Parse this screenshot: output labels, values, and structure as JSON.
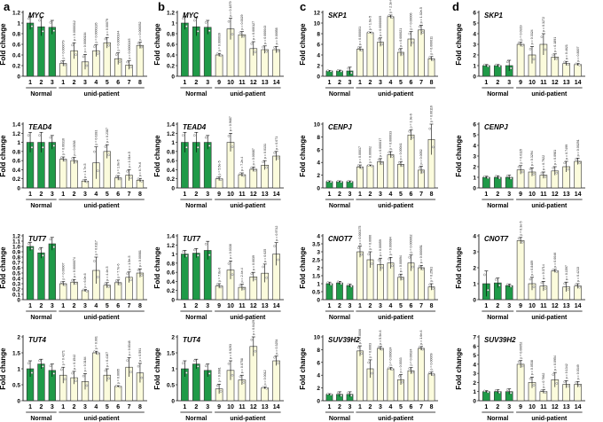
{
  "panel_labels": [
    "a",
    "b",
    "c",
    "d"
  ],
  "colors": {
    "normal_fill": "#1f9a48",
    "patient_fill": "#fbfbdc",
    "bar_stroke": "#333333",
    "axis": "#000000"
  },
  "chart_data": [
    {
      "type": "bar",
      "panel": "a",
      "title": "MYC",
      "ylabel": "Fold change",
      "ylim": [
        0,
        1.2
      ],
      "yticks": [
        0,
        0.2,
        0.4,
        0.6,
        0.8,
        1,
        1.2
      ],
      "ytick_labels": [
        "0",
        "0.2",
        "0.4",
        "0.6",
        "0.8",
        "1",
        "1.2"
      ],
      "categories": [
        "1",
        "2",
        "3",
        "1",
        "2",
        "3",
        "4",
        "5",
        "6",
        "7",
        "8"
      ],
      "values": [
        1.0,
        0.93,
        0.92,
        0.24,
        0.48,
        0.27,
        0.48,
        0.63,
        0.33,
        0.21,
        0.58
      ],
      "errors": [
        0.12,
        0.17,
        0.13,
        0.05,
        0.15,
        0.14,
        0.11,
        0.1,
        0.11,
        0.08,
        0.06
      ],
      "pvalues": [
        "",
        "",
        "",
        "p = 0.000079",
        "p = 0.0000312",
        "p = 0.0000184",
        "p = 0.0000226",
        "p = 0.00079",
        "p = 0.0000144",
        "p = 0.0000245",
        "p = 0.000052"
      ],
      "group_labels": [
        "Normal",
        "unid-patient"
      ]
    },
    {
      "type": "bar",
      "panel": "b",
      "title": "MYC",
      "ylabel": "Fold change",
      "ylim": [
        0,
        1.2
      ],
      "yticks": [
        0,
        0.2,
        0.4,
        0.6,
        0.8,
        1,
        1.2
      ],
      "ytick_labels": [
        "0",
        "0.2",
        "0.4",
        "0.6",
        "0.8",
        "1",
        "1.2"
      ],
      "categories": [
        "1",
        "2",
        "3",
        "9",
        "10",
        "11",
        "12",
        "13",
        "14"
      ],
      "values": [
        1.0,
        0.93,
        0.92,
        0.4,
        0.89,
        0.78,
        0.52,
        0.5,
        0.5
      ],
      "errors": [
        0.12,
        0.17,
        0.13,
        0.03,
        0.2,
        0.06,
        0.13,
        0.07,
        0.06
      ],
      "pvalues": [
        "",
        "",
        "",
        "p = 0.000039",
        "p = 0.1879",
        "p = 0.0029",
        "p = 0.000127",
        "p = 0.000043",
        "p = 0.00058"
      ],
      "group_labels": [
        "Normal",
        "unid-patient"
      ]
    },
    {
      "type": "bar",
      "panel": "c",
      "title": "SKP1",
      "ylabel": "Fold change",
      "ylim": [
        0,
        12
      ],
      "yticks": [
        0,
        2,
        4,
        6,
        8,
        10,
        12
      ],
      "ytick_labels": [
        "0",
        "2",
        "4",
        "6",
        "8",
        "10",
        "12"
      ],
      "categories": [
        "1",
        "2",
        "3",
        "1",
        "2",
        "3",
        "4",
        "5",
        "6",
        "7",
        "8"
      ],
      "values": [
        1.0,
        1.0,
        1.0,
        5.1,
        8.2,
        6.4,
        11.2,
        4.5,
        7.0,
        8.7,
        3.3
      ],
      "errors": [
        0.1,
        0.15,
        0.7,
        0.4,
        0.1,
        0.8,
        0.3,
        0.7,
        1.4,
        0.9,
        0.4
      ],
      "pvalues": [
        "",
        "",
        "",
        "p = 0.000001",
        "p = 1.6e-5",
        "p = 0.0000005",
        "p = 2.1e-6",
        "p = 0.000021",
        "p = 0.00006",
        "p = 1.02e-5",
        "p = 0.000011"
      ],
      "group_labels": [
        "Normal",
        "unid-patient"
      ]
    },
    {
      "type": "bar",
      "panel": "d",
      "title": "SKP1",
      "ylabel": "Fold change",
      "ylim": [
        0,
        6
      ],
      "yticks": [
        0,
        1,
        2,
        3,
        4,
        5,
        6
      ],
      "ytick_labels": [
        "0",
        "1",
        "2",
        "3",
        "4",
        "5",
        "6"
      ],
      "categories": [
        "1",
        "2",
        "3",
        "9",
        "10",
        "11",
        "12",
        "13",
        "14"
      ],
      "values": [
        1.0,
        1.0,
        1.0,
        3.0,
        2.0,
        3.0,
        1.8,
        1.2,
        1.1
      ],
      "errors": [
        0.1,
        0.1,
        0.5,
        0.2,
        0.8,
        1.0,
        0.3,
        0.2,
        0.1
      ],
      "pvalues": [
        "",
        "",
        "",
        "p = 0.0319",
        "p = 0.3324",
        "p = 0.3272",
        "p = 0.1891",
        "p = 0.4621",
        "p = 0.8007"
      ],
      "group_labels": [
        "Normal",
        "unid-patient"
      ]
    },
    {
      "type": "bar",
      "panel": "a",
      "title": "TEAD4",
      "ylabel": "Fold change",
      "ylim": [
        0,
        1.4
      ],
      "yticks": [
        0,
        0.2,
        0.4,
        0.6,
        0.8,
        1,
        1.2,
        1.4
      ],
      "ytick_labels": [
        "0",
        "0.2",
        "0.4",
        "0.6",
        "0.8",
        "1",
        "1.2",
        "1.4"
      ],
      "categories": [
        "1",
        "2",
        "3",
        "1",
        "2",
        "3",
        "4",
        "5",
        "6",
        "7",
        "8"
      ],
      "values": [
        1.0,
        1.0,
        1.0,
        0.63,
        0.6,
        0.15,
        0.55,
        0.8,
        0.22,
        0.28,
        0.17
      ],
      "errors": [
        0.22,
        0.22,
        0.15,
        0.05,
        0.07,
        0.03,
        0.35,
        0.15,
        0.05,
        0.12,
        0.04
      ],
      "pvalues": [
        "",
        "",
        "",
        "p = 0.00316",
        "p = 0.0038",
        "p = 1.7e-5",
        "p = 0.0281",
        "p = 0.2387",
        "p = 1.6e-5",
        "p = 1.01e-5",
        "p = 6.7e-6"
      ],
      "group_labels": [
        "Normal",
        "unid-patient"
      ]
    },
    {
      "type": "bar",
      "panel": "b",
      "title": "TEAD4",
      "ylabel": "Fold change",
      "ylim": [
        0,
        1.4
      ],
      "yticks": [
        0,
        0.2,
        0.4,
        0.6,
        0.8,
        1,
        1.2,
        1.4
      ],
      "ytick_labels": [
        "0",
        "0.2",
        "0.4",
        "0.6",
        "0.8",
        "1",
        "1.2",
        "1.4"
      ],
      "categories": [
        "1",
        "2",
        "3",
        "9",
        "10",
        "11",
        "12",
        "13",
        "14"
      ],
      "values": [
        1.0,
        1.0,
        1.0,
        0.2,
        1.0,
        0.29,
        0.41,
        0.5,
        0.7
      ],
      "errors": [
        0.22,
        0.22,
        0.15,
        0.04,
        0.2,
        0.04,
        0.05,
        0.1,
        0.1
      ],
      "pvalues": [
        "",
        "",
        "",
        "p = 5.5e-5",
        "p = 0.9687",
        "p = 7.2e-4",
        "p = 0.00087",
        "p = 0.0131",
        "p = 0.071"
      ],
      "group_labels": [
        "Normal",
        "unid-patient"
      ]
    },
    {
      "type": "bar",
      "panel": "c",
      "title": "CENPJ",
      "ylabel": "Fold change",
      "ylim": [
        0,
        10
      ],
      "yticks": [
        0,
        2,
        4,
        6,
        8,
        10
      ],
      "ytick_labels": [
        "0",
        "2",
        "4",
        "6",
        "8",
        "10"
      ],
      "categories": [
        "1",
        "2",
        "3",
        "1",
        "2",
        "3",
        "4",
        "5",
        "6",
        "7",
        "8"
      ],
      "values": [
        1.0,
        1.0,
        1.0,
        3.3,
        3.5,
        4.1,
        5.2,
        3.7,
        8.3,
        2.8,
        7.6
      ],
      "errors": [
        0.1,
        0.1,
        0.1,
        0.3,
        0.1,
        0.5,
        0.5,
        0.4,
        0.8,
        0.6,
        2.4
      ],
      "pvalues": [
        "",
        "",
        "",
        "p = 0.00017",
        "p = 0.00002",
        "p = 0.000017",
        "p = 0.000033",
        "p = 0.00041",
        "p = 1.9e-6",
        "p = 0.0052",
        "p = 0.00116"
      ],
      "group_labels": [
        "Normal",
        "unid-patient"
      ]
    },
    {
      "type": "bar",
      "panel": "d",
      "title": "CENPJ",
      "ylabel": "Fold change",
      "ylim": [
        0,
        6
      ],
      "yticks": [
        0,
        1,
        2,
        3,
        4,
        5,
        6
      ],
      "ytick_labels": [
        "0",
        "1",
        "2",
        "3",
        "4",
        "5",
        "6"
      ],
      "categories": [
        "1",
        "2",
        "3",
        "9",
        "10",
        "11",
        "12",
        "13",
        "14"
      ],
      "values": [
        1.0,
        1.0,
        1.0,
        1.7,
        1.5,
        1.2,
        1.6,
        2.0,
        2.5
      ],
      "errors": [
        0.1,
        0.15,
        0.2,
        0.4,
        0.4,
        0.3,
        0.4,
        0.5,
        0.3
      ],
      "pvalues": [
        "",
        "",
        "",
        "p = 0.0115",
        "p = 0.3294",
        "p = 0.7922",
        "p = 0.0981",
        "p = 0.7499",
        "p = 0.00291"
      ],
      "group_labels": [
        "Normal",
        "unid-patient"
      ]
    },
    {
      "type": "bar",
      "panel": "a",
      "title": "TUT7",
      "ylabel": "Fold change",
      "ylim": [
        0,
        1.2
      ],
      "yticks": [
        0,
        0.1,
        0.2,
        0.3,
        0.4,
        0.5,
        0.6,
        0.7,
        0.8,
        0.9,
        1,
        1.1,
        1.2
      ],
      "ytick_labels": [
        "0",
        "0.1",
        "0.2",
        "0.3",
        "0.4",
        "0.5",
        "0.6",
        "0.7",
        "0.8",
        "0.9",
        "1.0",
        "1.1",
        "1.2"
      ],
      "categories": [
        "1",
        "2",
        "3",
        "1",
        "2",
        "3",
        "4",
        "5",
        "6",
        "7",
        "8"
      ],
      "values": [
        1.0,
        0.88,
        1.05,
        0.3,
        0.33,
        0.17,
        0.55,
        0.27,
        0.32,
        0.42,
        0.5
      ],
      "errors": [
        0.08,
        0.1,
        0.12,
        0.04,
        0.05,
        0.02,
        0.25,
        0.05,
        0.05,
        0.1,
        0.08
      ],
      "pvalues": [
        "",
        "",
        "",
        "p = 0.00007",
        "p = 0.0000074",
        "p = 6.0e-6",
        "p = 0.0117",
        "p = 4.4e-5",
        "p = 7.7e-6",
        "p = 1.5e-5",
        "p = 0.00081"
      ],
      "group_labels": [
        "Normal",
        "unid-patient"
      ]
    },
    {
      "type": "bar",
      "panel": "b",
      "title": "TUT7",
      "ylabel": "Fold change",
      "ylim": [
        0,
        1.4
      ],
      "yticks": [
        0,
        0.2,
        0.4,
        0.6,
        0.8,
        1,
        1.2,
        1.4
      ],
      "ytick_labels": [
        "0",
        "0.2",
        "0.4",
        "0.6",
        "0.8",
        "1",
        "1.2",
        "1.4"
      ],
      "categories": [
        "1",
        "2",
        "3",
        "9",
        "10",
        "11",
        "12",
        "13",
        "14"
      ],
      "values": [
        1.0,
        1.02,
        1.08,
        0.3,
        0.65,
        0.27,
        0.5,
        0.58,
        1.0
      ],
      "errors": [
        0.08,
        0.1,
        0.2,
        0.05,
        0.2,
        0.07,
        0.1,
        0.2,
        0.25
      ],
      "pvalues": [
        "",
        "",
        "",
        "p = 7.6e-6",
        "p = 0.0338",
        "p = 2.4e-4",
        "p = 0.0039",
        "p = 0.025",
        "p = 0.9742"
      ],
      "group_labels": [
        "Normal",
        "unid-patient"
      ]
    },
    {
      "type": "bar",
      "panel": "c",
      "title": "CNOT7",
      "ylabel": "Fold change",
      "ylim": [
        0,
        4
      ],
      "yticks": [
        0,
        0.5,
        1,
        1.5,
        2,
        2.5,
        3,
        3.5,
        4
      ],
      "ytick_labels": [
        "0",
        "0.5",
        "1",
        "1.5",
        "2",
        "2.5",
        "3",
        "3.5",
        "4"
      ],
      "categories": [
        "1",
        "2",
        "3",
        "1",
        "2",
        "3",
        "4",
        "5",
        "6",
        "7",
        "8"
      ],
      "values": [
        1.0,
        1.05,
        0.88,
        3.0,
        2.5,
        2.2,
        2.3,
        1.4,
        2.3,
        2.0,
        0.8
      ],
      "errors": [
        0.1,
        0.1,
        0.1,
        0.35,
        0.5,
        0.4,
        0.35,
        0.2,
        0.5,
        0.15,
        0.2
      ],
      "pvalues": [
        "",
        "",
        "",
        "p = 0.000175",
        "p = 0.0066",
        "p = 0.00059",
        "p = 0.000084",
        "p = 0.00094",
        "p = 0.000062",
        "p = 0.000051",
        "p = 0.2581"
      ],
      "group_labels": [
        "Normal",
        "unid-patient"
      ]
    },
    {
      "type": "bar",
      "panel": "d",
      "title": "CNOT7",
      "ylabel": "Fold change",
      "ylim": [
        0,
        4
      ],
      "yticks": [
        0,
        1,
        2,
        3,
        4
      ],
      "ytick_labels": [
        "0",
        "1",
        "2",
        "3",
        "4"
      ],
      "categories": [
        "1",
        "2",
        "3",
        "9",
        "10",
        "11",
        "12",
        "13",
        "14"
      ],
      "values": [
        1.0,
        1.05,
        0.88,
        3.7,
        1.0,
        0.85,
        1.8,
        0.8,
        0.85
      ],
      "errors": [
        0.8,
        0.3,
        0.1,
        0.2,
        0.4,
        0.3,
        0.1,
        0.3,
        0.15
      ],
      "pvalues": [
        "",
        "",
        "",
        "p = 6.3e-5",
        "p = 0.8489",
        "p = 0.3714",
        "p = 0.0046",
        "p = 0.1597",
        "p = 0.4213"
      ],
      "group_labels": [
        "Normal",
        "unid-patient"
      ]
    },
    {
      "type": "bar",
      "panel": "a",
      "title": "TUT4",
      "ylabel": "Fold change",
      "ylim": [
        0,
        2
      ],
      "yticks": [
        0,
        0.5,
        1,
        1.5,
        2
      ],
      "ytick_labels": [
        "0",
        "0.5",
        "1",
        "1.5",
        "2"
      ],
      "categories": [
        "1",
        "2",
        "3",
        "1",
        "2",
        "3",
        "4",
        "5",
        "6",
        "7",
        "8"
      ],
      "values": [
        1.0,
        1.15,
        0.95,
        0.8,
        0.72,
        0.6,
        1.5,
        0.8,
        0.45,
        1.05,
        0.87
      ],
      "errors": [
        0.25,
        0.15,
        0.2,
        0.25,
        0.2,
        0.25,
        0.05,
        0.2,
        0.02,
        0.3,
        0.3
      ],
      "pvalues": [
        "",
        "",
        "",
        "p = 0.4271",
        "p = 0.1542",
        "p = 0.3164",
        "p = 0.001",
        "p = 0.4107",
        "p = 0.0095",
        "p = 0.8348",
        "p = 0.591"
      ],
      "group_labels": [
        "Normal",
        "unid-patient"
      ]
    },
    {
      "type": "bar",
      "panel": "b",
      "title": "TUT4",
      "ylabel": "Fold change",
      "ylim": [
        0,
        2
      ],
      "yticks": [
        0,
        0.5,
        1,
        1.5,
        2
      ],
      "ytick_labels": [
        "0",
        "0.5",
        "1",
        "1.5",
        "2"
      ],
      "categories": [
        "1",
        "2",
        "3",
        "9",
        "10",
        "11",
        "12",
        "13",
        "14"
      ],
      "values": [
        1.0,
        1.15,
        0.95,
        0.37,
        0.95,
        0.65,
        1.7,
        0.4,
        1.25
      ],
      "errors": [
        0.25,
        0.15,
        0.2,
        0.15,
        0.3,
        0.15,
        0.3,
        0.03,
        0.15
      ],
      "pvalues": [
        "",
        "",
        "",
        "p = 0.0081",
        "p = 0.9293",
        "p = 0.0758",
        "p = 0.0429",
        "p = 0.0012",
        "p = 0.3254"
      ],
      "group_labels": [
        "Normal",
        "unid-patient"
      ]
    },
    {
      "type": "bar",
      "panel": "c",
      "title": "SUV39H2",
      "ylabel": "Fold change",
      "ylim": [
        0,
        10
      ],
      "yticks": [
        0,
        2,
        4,
        6,
        8,
        10
      ],
      "ytick_labels": [
        "0",
        "2",
        "4",
        "6",
        "8",
        "10"
      ],
      "categories": [
        "1",
        "2",
        "3",
        "1",
        "2",
        "3",
        "4",
        "5",
        "6",
        "7",
        "8"
      ],
      "values": [
        1.0,
        1.0,
        1.0,
        7.8,
        5.0,
        8.2,
        5.0,
        3.3,
        4.7,
        8.2,
        4.2
      ],
      "errors": [
        0.1,
        0.4,
        0.4,
        0.8,
        1.4,
        0.3,
        0.2,
        0.8,
        0.5,
        0.3,
        0.3
      ],
      "pvalues": [
        "",
        "",
        "",
        "p = 0.0006",
        "p = 0.0063",
        "p = 5.5e-6",
        "p = 0.000024",
        "p = 0.0033",
        "p = 0.00024",
        "p = 1.6e-6",
        "p = 0.00009"
      ],
      "group_labels": [
        "Normal",
        "unid-patient"
      ]
    },
    {
      "type": "bar",
      "panel": "d",
      "title": "SUV39H2",
      "ylabel": "Fold change",
      "ylim": [
        0,
        7
      ],
      "yticks": [
        0,
        1,
        2,
        3,
        4,
        5,
        6,
        7
      ],
      "ytick_labels": [
        "0",
        "1",
        "2",
        "3",
        "4",
        "5",
        "6",
        "7"
      ],
      "categories": [
        "1",
        "2",
        "3",
        "9",
        "10",
        "11",
        "12",
        "13",
        "14"
      ],
      "values": [
        1.0,
        1.0,
        1.0,
        4.0,
        2.0,
        1.0,
        2.3,
        1.8,
        1.8
      ],
      "errors": [
        0.1,
        0.2,
        0.3,
        0.4,
        0.6,
        0.2,
        0.8,
        0.4,
        0.3
      ],
      "pvalues": [
        "",
        "",
        "",
        "p = 0.00052",
        "p = 0.0538",
        "p = 0.7662",
        "p = 0.0954",
        "p = 0.1342",
        "p = 0.0349"
      ],
      "group_labels": [
        "Normal",
        "unid-patient"
      ]
    }
  ]
}
